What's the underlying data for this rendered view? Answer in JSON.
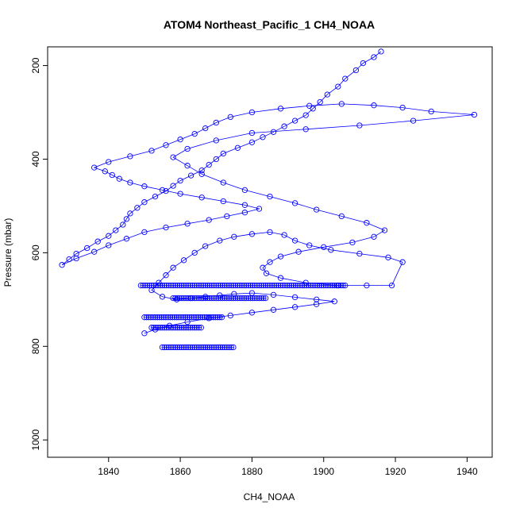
{
  "chart_data": {
    "type": "scatter",
    "title": "ATOM4 Northeast_Pacific_1 CH4_NOAA",
    "xlabel": "CH4_NOAA",
    "ylabel": "Pressure (mbar)",
    "xlim": [
      1823,
      1947
    ],
    "ylim": [
      1037,
      160
    ],
    "y_reversed": true,
    "x_ticks": [
      1840,
      1860,
      1880,
      1900,
      1920,
      1940
    ],
    "y_ticks": [
      200,
      400,
      600,
      800,
      1000
    ],
    "grid": false,
    "legend": "none",
    "color": "#0000ff",
    "style": "points connected by lines",
    "series": [
      {
        "x": [
          1916,
          1914,
          1911,
          1909,
          1906,
          1904,
          1901,
          1899,
          1897,
          1895,
          1892,
          1889,
          1886,
          1883,
          1880,
          1876,
          1872,
          1870,
          1868,
          1866,
          1863,
          1860,
          1858,
          1856,
          1853,
          1850,
          1848,
          1846,
          1845,
          1844,
          1842,
          1840,
          1837,
          1834,
          1831,
          1829,
          1827,
          1831,
          1836,
          1840,
          1845,
          1850,
          1856,
          1862,
          1868,
          1873,
          1878,
          1882,
          1878,
          1872,
          1866,
          1860,
          1855,
          1850,
          1846,
          1843,
          1841,
          1839,
          1836,
          1840,
          1846,
          1852,
          1856,
          1860,
          1864,
          1867,
          1870,
          1874,
          1880,
          1888,
          1896,
          1905,
          1914,
          1922,
          1930,
          1942,
          1925,
          1910,
          1895,
          1880,
          1870,
          1862,
          1858,
          1862,
          1866,
          1872,
          1878,
          1885,
          1892,
          1898,
          1905,
          1912,
          1917,
          1914,
          1908,
          1900,
          1893,
          1888,
          1885,
          1883,
          1884,
          1888,
          1895,
          1904,
          1912,
          1919,
          1922,
          1918,
          1910,
          1902,
          1896,
          1892,
          1889,
          1885,
          1880,
          1875,
          1871,
          1867,
          1864,
          1861,
          1858,
          1856,
          1854,
          1852,
          1855,
          1859,
          1863,
          1867,
          1871,
          1875,
          1880,
          1886,
          1892,
          1898,
          1903,
          1898,
          1892,
          1886,
          1880,
          1874,
          1868,
          1862,
          1857,
          1853,
          1850
        ],
        "y": [
          170,
          182,
          195,
          210,
          228,
          245,
          262,
          278,
          292,
          306,
          318,
          330,
          342,
          353,
          364,
          376,
          388,
          400,
          412,
          424,
          435,
          446,
          457,
          468,
          480,
          492,
          504,
          516,
          528,
          540,
          552,
          564,
          576,
          590,
          602,
          614,
          626,
          612,
          598,
          584,
          570,
          556,
          546,
          538,
          530,
          522,
          514,
          506,
          498,
          490,
          482,
          474,
          466,
          458,
          450,
          442,
          434,
          426,
          418,
          406,
          394,
          382,
          370,
          358,
          346,
          334,
          322,
          310,
          300,
          292,
          286,
          282,
          285,
          290,
          298,
          305,
          318,
          328,
          336,
          344,
          360,
          378,
          396,
          414,
          432,
          450,
          466,
          480,
          494,
          508,
          522,
          536,
          552,
          566,
          578,
          588,
          598,
          608,
          620,
          632,
          644,
          654,
          664,
          670,
          670,
          670,
          620,
          610,
          602,
          594,
          584,
          574,
          562,
          556,
          560,
          566,
          574,
          586,
          600,
          616,
          632,
          648,
          664,
          680,
          694,
          700,
          697,
          694,
          691,
          688,
          686,
          690,
          695,
          700,
          704,
          710,
          716,
          722,
          728,
          734,
          740,
          748,
          756,
          764,
          772
        ]
      }
    ],
    "dense_bands": [
      {
        "pressure": 670,
        "x_range": [
          1849,
          1906
        ]
      },
      {
        "pressure": 697,
        "x_range": [
          1858,
          1884
        ]
      },
      {
        "pressure": 738,
        "x_range": [
          1850,
          1872
        ]
      },
      {
        "pressure": 760,
        "x_range": [
          1852,
          1866
        ]
      },
      {
        "pressure": 802,
        "x_range": [
          1855,
          1875
        ]
      }
    ]
  }
}
